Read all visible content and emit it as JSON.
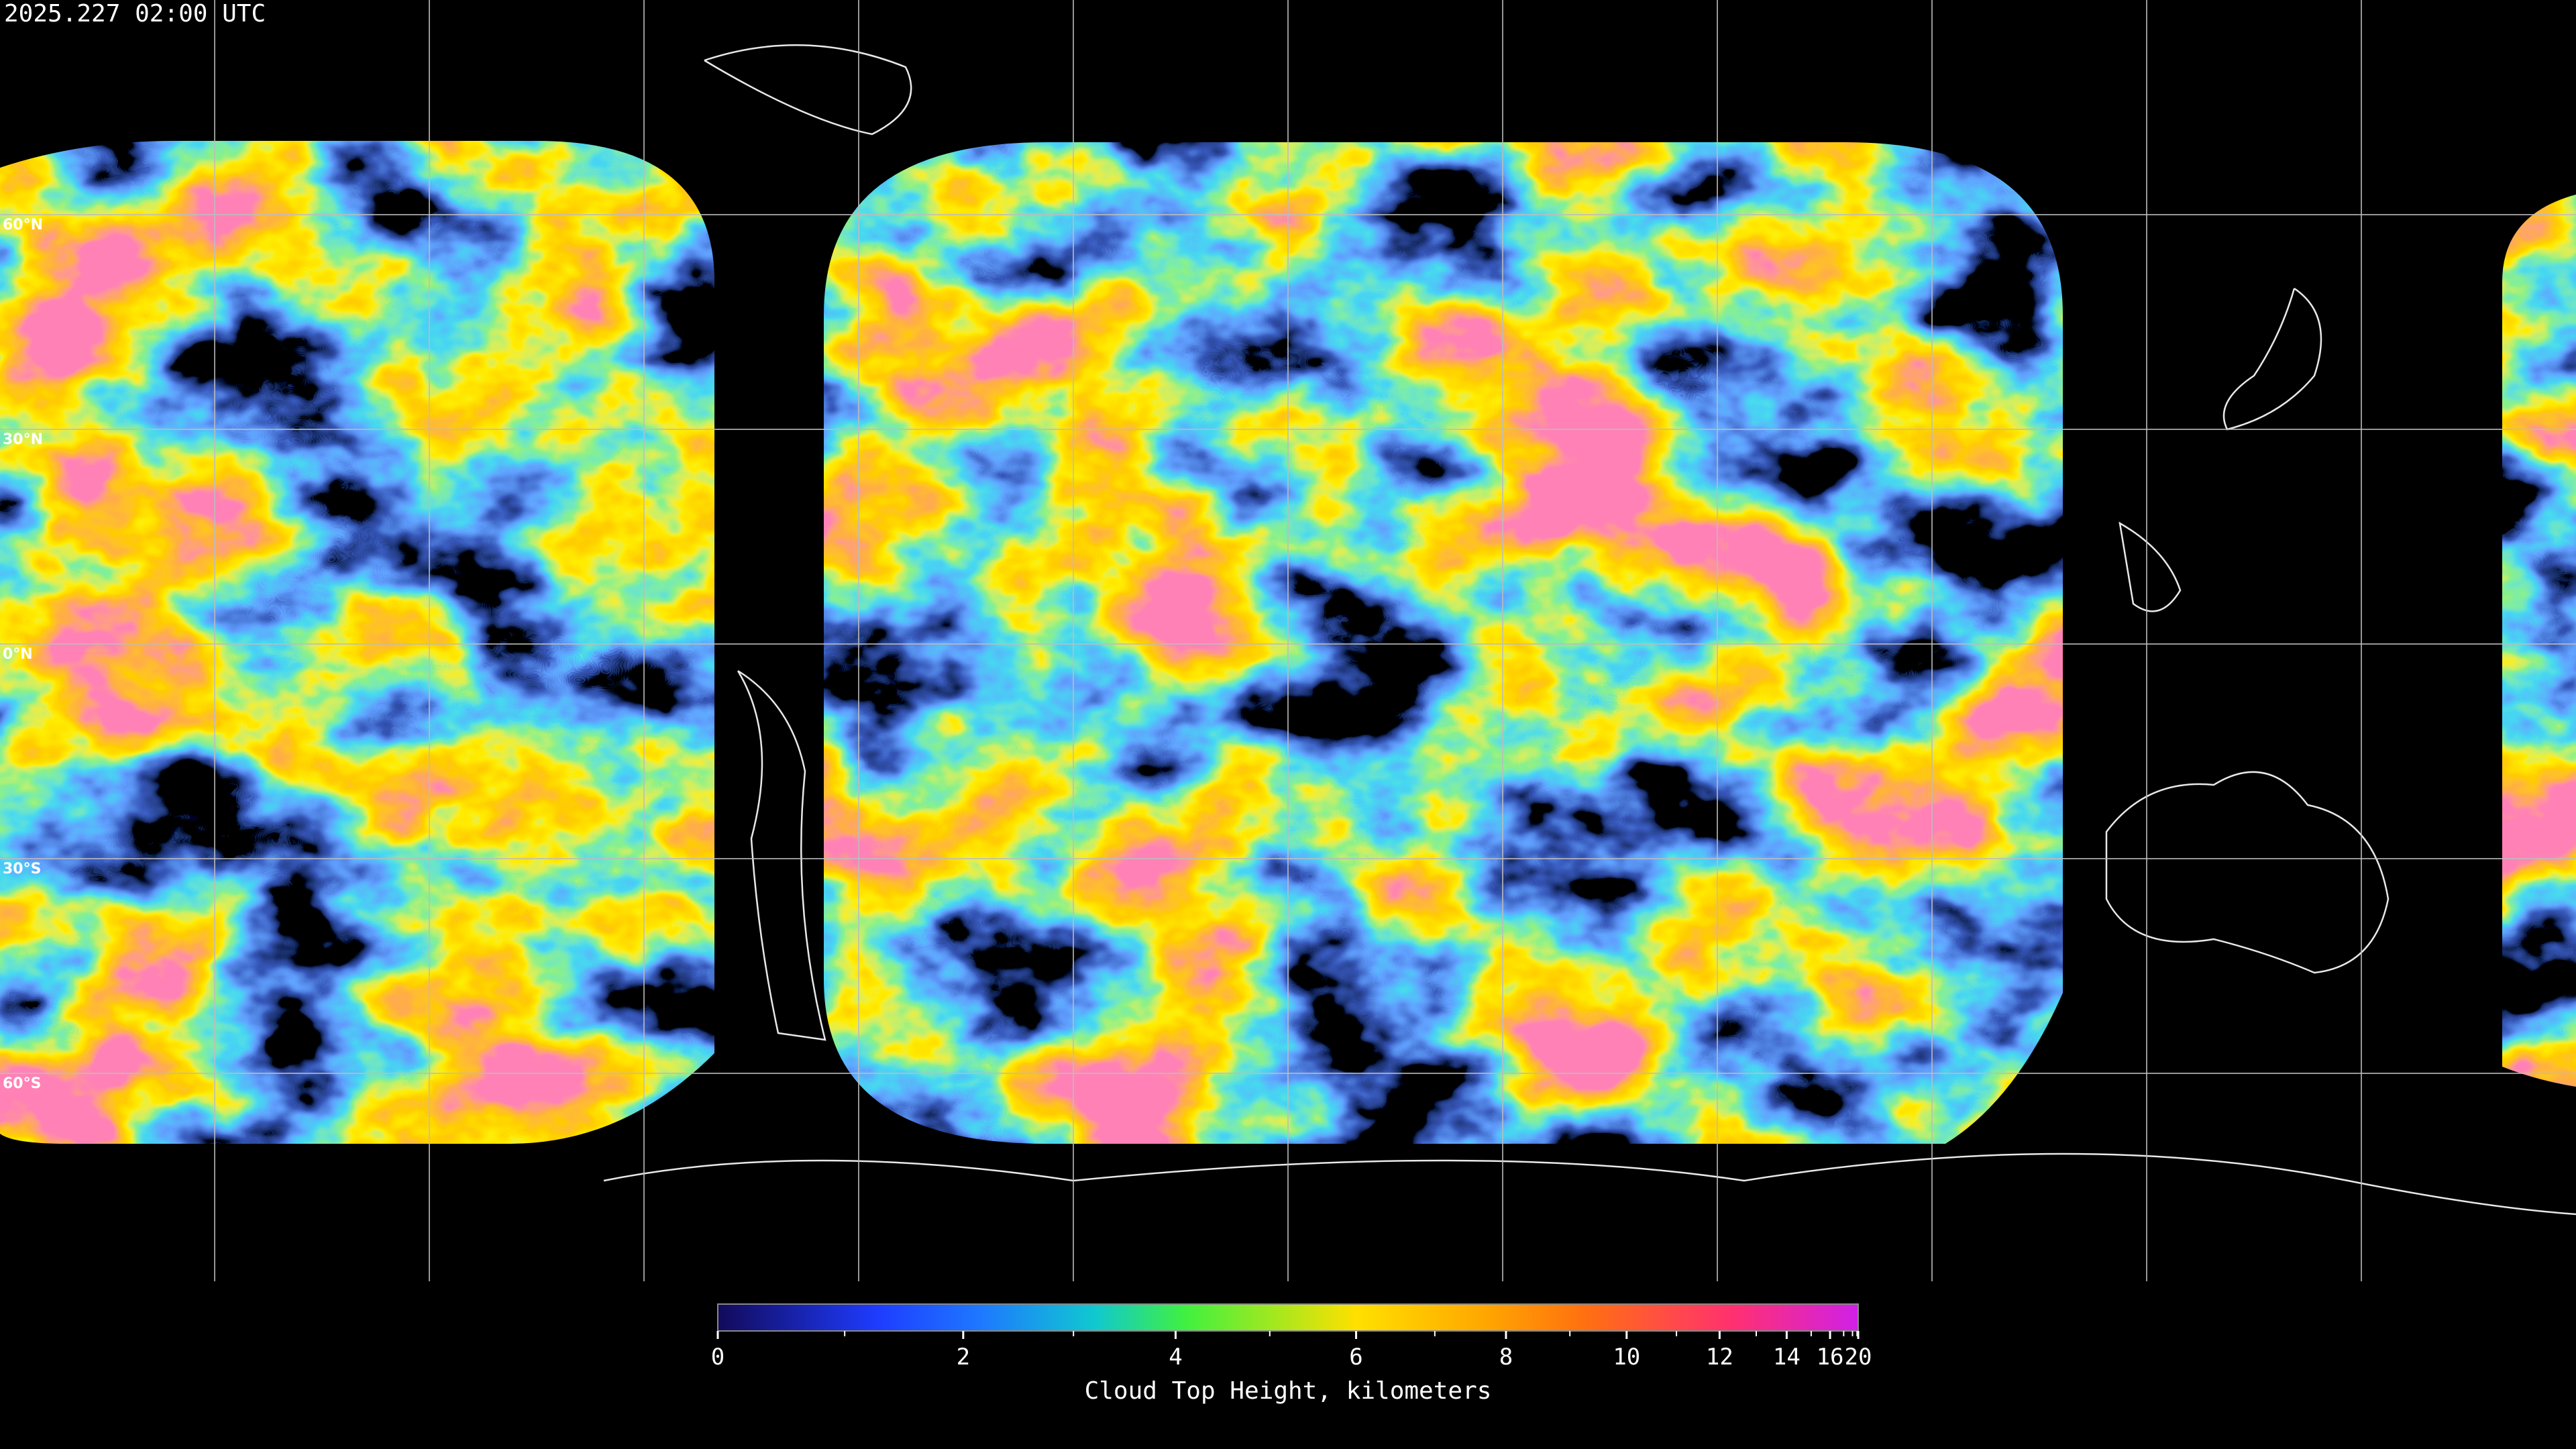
{
  "header": {
    "title": "2025.227 02:00 UTC"
  },
  "map": {
    "lat_labels": [
      "60°N",
      "30°N",
      "0°N",
      "30°S",
      "60°S"
    ]
  },
  "colorbar": {
    "label": "Cloud Top Height, kilometers",
    "ticks": [
      0,
      2,
      4,
      6,
      8,
      10,
      12,
      14,
      16,
      20
    ],
    "minor_ticks": [
      1,
      3,
      5,
      7,
      9,
      11,
      13,
      15,
      17,
      18,
      19
    ]
  }
}
